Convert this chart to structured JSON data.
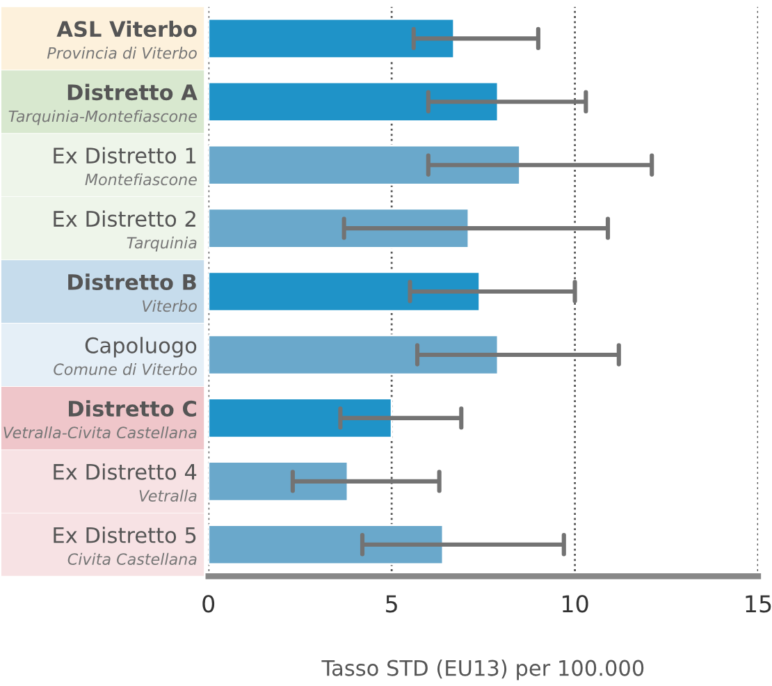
{
  "chart_data": {
    "type": "bar",
    "orientation": "horizontal",
    "categories": [
      "ASL Viterbo\nProvincia di Viterbo",
      "Distretto A\nTarquinia-Montefiascone",
      "Ex Distretto 1\nMontefiascone",
      "Ex Distretto 2\nTarquinia",
      "Distretto B\nViterbo",
      "Capoluogo\nComune di Viterbo",
      "Distretto C\nVetralla-Civita Castellana",
      "Ex Distretto 4\nVetralla",
      "Ex Distretto 5\nCivita Castellana"
    ],
    "values": [
      6.7,
      7.9,
      8.5,
      7.1,
      7.4,
      7.9,
      5.0,
      3.8,
      6.4
    ],
    "errors": [
      [
        5.6,
        9.0
      ],
      [
        6.0,
        10.3
      ],
      [
        6.0,
        12.1
      ],
      [
        3.7,
        10.9
      ],
      [
        5.5,
        10.0
      ],
      [
        5.7,
        11.2
      ],
      [
        3.6,
        6.9
      ],
      [
        2.3,
        6.3
      ],
      [
        4.2,
        9.7
      ]
    ],
    "colors": [
      "#1f93c8",
      "#1f93c8",
      "#6aa8cb",
      "#6aa8cb",
      "#1f93c8",
      "#6aa8cb",
      "#1f93c8",
      "#6aa8cb",
      "#6aa8cb"
    ],
    "xlabel": "Tasso STD (EU13) per 100.000",
    "xlim": [
      0,
      15
    ],
    "xticks": [
      0,
      5,
      10,
      15
    ],
    "grid": "x"
  }
}
